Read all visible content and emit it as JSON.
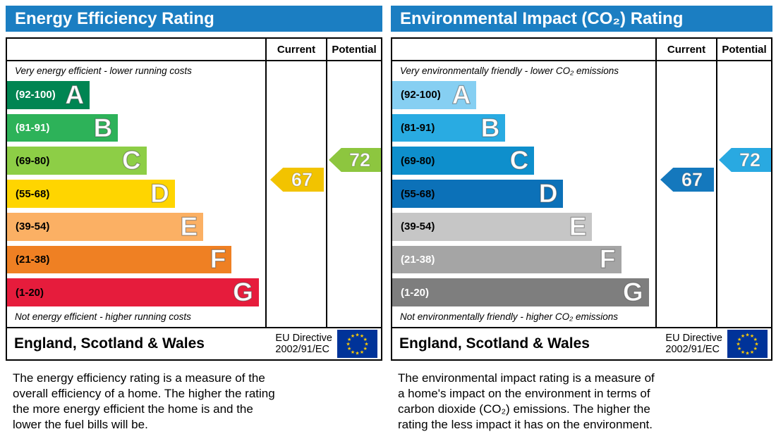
{
  "panels": [
    {
      "id": "energy-efficiency",
      "title": "Energy Efficiency Rating",
      "header_bg": "#1b7ec2",
      "col_current": "Current",
      "col_potential": "Potential",
      "caption_top": "Very energy efficient - lower running costs",
      "caption_bottom": "Not energy efficient - higher running costs",
      "bands": [
        {
          "letter": "A",
          "range": "(92-100)",
          "color": "#008552",
          "label_color": "#ffffff",
          "width_pct": 32
        },
        {
          "letter": "B",
          "range": "(81-91)",
          "color": "#2db259",
          "label_color": "#ffffff",
          "width_pct": 43
        },
        {
          "letter": "C",
          "range": "(69-80)",
          "color": "#8dce46",
          "label_color": "#000000",
          "width_pct": 54
        },
        {
          "letter": "D",
          "range": "(55-68)",
          "color": "#ffd500",
          "label_color": "#000000",
          "width_pct": 65
        },
        {
          "letter": "E",
          "range": "(39-54)",
          "color": "#fbb064",
          "label_color": "#000000",
          "width_pct": 76
        },
        {
          "letter": "F",
          "range": "(21-38)",
          "color": "#ef8023",
          "label_color": "#000000",
          "width_pct": 87
        },
        {
          "letter": "G",
          "range": "(1-20)",
          "color": "#e61c3c",
          "label_color": "#000000",
          "width_pct": 97.5
        }
      ],
      "current": {
        "label": "67",
        "color": "#f2c300"
      },
      "potential": {
        "label": "72",
        "color": "#8dc63f"
      },
      "footer_region": "England, Scotland & Wales",
      "directive_line1": "EU Directive",
      "directive_line2": "2002/91/EC",
      "description_lines": [
        "The energy efficiency rating is a measure of the",
        "overall efficiency of a home. The higher the rating",
        "the more energy efficient the home is and the",
        "lower the fuel bills will be."
      ]
    },
    {
      "id": "environmental-impact",
      "title": "Environmental Impact (CO₂) Rating",
      "header_bg": "#1b7ec2",
      "col_current": "Current",
      "col_potential": "Potential",
      "caption_top": "Very environmentally friendly - lower CO₂ emissions",
      "caption_bottom": "Not environmentally friendly - higher CO₂ emissions",
      "bands": [
        {
          "letter": "A",
          "range": "(92-100)",
          "color": "#86cff2",
          "label_color": "#000000",
          "width_pct": 32
        },
        {
          "letter": "B",
          "range": "(81-91)",
          "color": "#29abe2",
          "label_color": "#000000",
          "width_pct": 43
        },
        {
          "letter": "C",
          "range": "(69-80)",
          "color": "#0e8fcc",
          "label_color": "#000000",
          "width_pct": 54
        },
        {
          "letter": "D",
          "range": "(55-68)",
          "color": "#0c71b8",
          "label_color": "#000000",
          "width_pct": 65
        },
        {
          "letter": "E",
          "range": "(39-54)",
          "color": "#c6c6c6",
          "label_color": "#000000",
          "width_pct": 76
        },
        {
          "letter": "F",
          "range": "(21-38)",
          "color": "#a5a5a5",
          "label_color": "#ffffff",
          "width_pct": 87
        },
        {
          "letter": "G",
          "range": "(1-20)",
          "color": "#7e7e7e",
          "label_color": "#ffffff",
          "width_pct": 97.5
        }
      ],
      "current": {
        "label": "67",
        "color": "#1478bd"
      },
      "potential": {
        "label": "72",
        "color": "#29a9e1"
      },
      "footer_region": "England, Scotland & Wales",
      "directive_line1": "EU Directive",
      "directive_line2": "2002/91/EC",
      "description_lines": [
        "The environmental impact rating is a measure of",
        "a home's impact on the environment in terms of",
        "carbon dioxide (CO₂) emissions. The higher the",
        "rating the less impact it has on the environment."
      ]
    }
  ],
  "flag": {
    "bg": "#003399",
    "star_color": "#ffcc00"
  },
  "chart_data": [
    {
      "type": "bar",
      "title": "Energy Efficiency Rating",
      "categories": [
        "A",
        "B",
        "C",
        "D",
        "E",
        "F",
        "G"
      ],
      "ranges": [
        "92-100",
        "81-91",
        "69-80",
        "55-68",
        "39-54",
        "21-38",
        "1-20"
      ],
      "band_colors": [
        "#008552",
        "#2db259",
        "#8dce46",
        "#ffd500",
        "#fbb064",
        "#ef8023",
        "#e61c3c"
      ],
      "series": [
        {
          "name": "Current",
          "values": [
            67
          ]
        },
        {
          "name": "Potential",
          "values": [
            72
          ]
        }
      ],
      "current": 67,
      "current_band": "D",
      "potential": 72,
      "potential_band": "C",
      "scale": [
        1,
        100
      ],
      "annotations": [
        "Very energy efficient - lower running costs",
        "Not energy efficient - higher running costs",
        "England, Scotland & Wales",
        "EU Directive 2002/91/EC"
      ]
    },
    {
      "type": "bar",
      "title": "Environmental Impact (CO₂) Rating",
      "categories": [
        "A",
        "B",
        "C",
        "D",
        "E",
        "F",
        "G"
      ],
      "ranges": [
        "92-100",
        "81-91",
        "69-80",
        "55-68",
        "39-54",
        "21-38",
        "1-20"
      ],
      "band_colors": [
        "#86cff2",
        "#29abe2",
        "#0e8fcc",
        "#0c71b8",
        "#c6c6c6",
        "#a5a5a5",
        "#7e7e7e"
      ],
      "series": [
        {
          "name": "Current",
          "values": [
            67
          ]
        },
        {
          "name": "Potential",
          "values": [
            72
          ]
        }
      ],
      "current": 67,
      "current_band": "D",
      "potential": 72,
      "potential_band": "C",
      "scale": [
        1,
        100
      ],
      "annotations": [
        "Very environmentally friendly - lower CO₂ emissions",
        "Not environmentally friendly - higher CO₂ emissions",
        "England, Scotland & Wales",
        "EU Directive 2002/91/EC"
      ]
    }
  ]
}
